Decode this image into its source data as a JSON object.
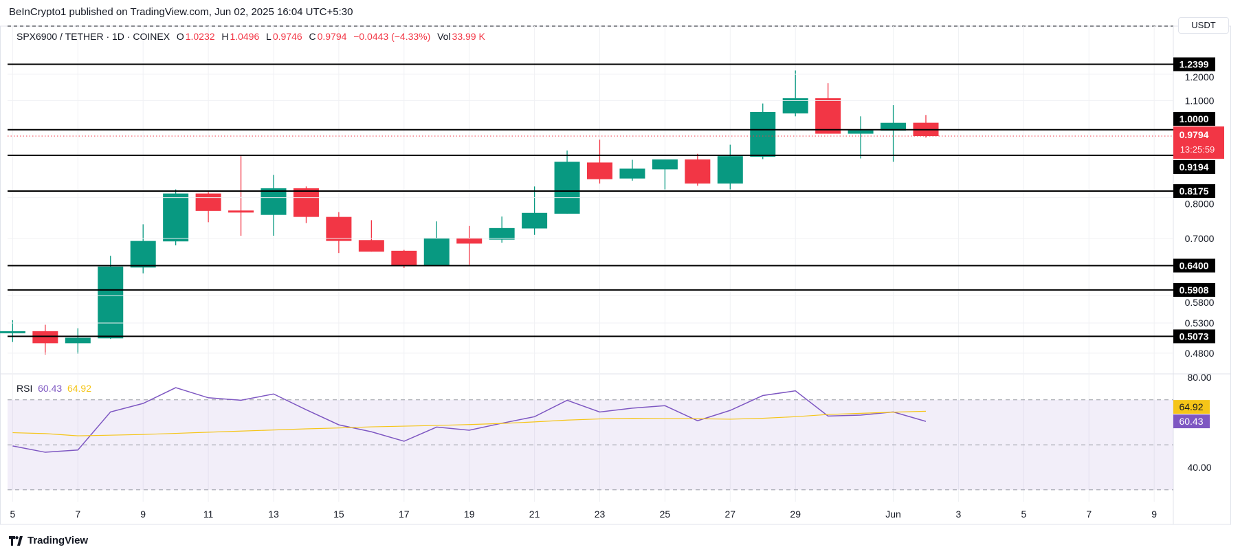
{
  "header": {
    "published": "BeInCrypto1 published on TradingView.com, Jun 02, 2025 16:04 UTC+5:30"
  },
  "legend": {
    "symbol": "SPX6900 / TETHER · 1D · COINEX",
    "o_label": "O",
    "o": "1.0232",
    "h_label": "H",
    "h": "1.0496",
    "l_label": "L",
    "l": "0.9746",
    "c_label": "C",
    "c": "0.9794",
    "change": "−0.0443 (−4.33%)",
    "vol_label": "Vol",
    "vol": "33.99 K"
  },
  "currency_button": "USDT",
  "footer": {
    "brand": "TradingView"
  },
  "colors": {
    "up": "#089981",
    "down": "#f23645",
    "rsi": "#7e57c2",
    "rsi_ma": "#f5c518",
    "level": "#000000"
  },
  "chart_data": [
    {
      "type": "candlestick",
      "scale": "log",
      "grid": true,
      "x_tick_labels": [
        "5",
        "7",
        "9",
        "11",
        "13",
        "15",
        "17",
        "19",
        "21",
        "23",
        "25",
        "27",
        "29",
        "Jun",
        "3",
        "5",
        "7",
        "9"
      ],
      "x_tick_dates": [
        "2025-05-05",
        "2025-05-07",
        "2025-05-09",
        "2025-05-11",
        "2025-05-13",
        "2025-05-15",
        "2025-05-17",
        "2025-05-19",
        "2025-05-21",
        "2025-05-23",
        "2025-05-25",
        "2025-05-27",
        "2025-05-29",
        "2025-06-01",
        "2025-06-03",
        "2025-06-05",
        "2025-06-07",
        "2025-06-09"
      ],
      "y_tick_labels": [
        "1.2000",
        "1.1000",
        "0.8000",
        "0.7000",
        "0.5800",
        "0.5300",
        "0.4800"
      ],
      "ylim": [
        0.46,
        1.27
      ],
      "candles": [
        {
          "date": "2025-05-05",
          "o": 0.515,
          "h": 0.535,
          "l": 0.498,
          "c": 0.516
        },
        {
          "date": "2025-05-06",
          "o": 0.516,
          "h": 0.527,
          "l": 0.478,
          "c": 0.496
        },
        {
          "date": "2025-05-07",
          "o": 0.496,
          "h": 0.521,
          "l": 0.479,
          "c": 0.505
        },
        {
          "date": "2025-05-08",
          "o": 0.504,
          "h": 0.661,
          "l": 0.503,
          "c": 0.638
        },
        {
          "date": "2025-05-09",
          "o": 0.636,
          "h": 0.733,
          "l": 0.624,
          "c": 0.694
        },
        {
          "date": "2025-05-10",
          "o": 0.693,
          "h": 0.822,
          "l": 0.684,
          "c": 0.811
        },
        {
          "date": "2025-05-11",
          "o": 0.811,
          "h": 0.815,
          "l": 0.738,
          "c": 0.766
        },
        {
          "date": "2025-05-12",
          "o": 0.767,
          "h": 0.918,
          "l": 0.706,
          "c": 0.764
        },
        {
          "date": "2025-05-13",
          "o": 0.756,
          "h": 0.862,
          "l": 0.706,
          "c": 0.825
        },
        {
          "date": "2025-05-14",
          "o": 0.825,
          "h": 0.83,
          "l": 0.736,
          "c": 0.751
        },
        {
          "date": "2025-05-15",
          "o": 0.751,
          "h": 0.763,
          "l": 0.667,
          "c": 0.694
        },
        {
          "date": "2025-05-16",
          "o": 0.696,
          "h": 0.743,
          "l": 0.67,
          "c": 0.67
        },
        {
          "date": "2025-05-17",
          "o": 0.672,
          "h": 0.674,
          "l": 0.635,
          "c": 0.64
        },
        {
          "date": "2025-05-18",
          "o": 0.64,
          "h": 0.74,
          "l": 0.64,
          "c": 0.701
        },
        {
          "date": "2025-05-19",
          "o": 0.701,
          "h": 0.729,
          "l": 0.642,
          "c": 0.688
        },
        {
          "date": "2025-05-20",
          "o": 0.697,
          "h": 0.752,
          "l": 0.69,
          "c": 0.724
        },
        {
          "date": "2025-05-21",
          "o": 0.723,
          "h": 0.83,
          "l": 0.708,
          "c": 0.761
        },
        {
          "date": "2025-05-22",
          "o": 0.759,
          "h": 0.934,
          "l": 0.759,
          "c": 0.9
        },
        {
          "date": "2025-05-23",
          "o": 0.898,
          "h": 0.968,
          "l": 0.838,
          "c": 0.85
        },
        {
          "date": "2025-05-24",
          "o": 0.852,
          "h": 0.906,
          "l": 0.846,
          "c": 0.88
        },
        {
          "date": "2025-05-25",
          "o": 0.878,
          "h": 0.907,
          "l": 0.822,
          "c": 0.907
        },
        {
          "date": "2025-05-26",
          "o": 0.907,
          "h": 0.924,
          "l": 0.832,
          "c": 0.838
        },
        {
          "date": "2025-05-27",
          "o": 0.838,
          "h": 0.952,
          "l": 0.822,
          "c": 0.917
        },
        {
          "date": "2025-05-28",
          "o": 0.915,
          "h": 1.09,
          "l": 0.908,
          "c": 1.06
        },
        {
          "date": "2025-05-29",
          "o": 1.055,
          "h": 1.215,
          "l": 1.045,
          "c": 1.109
        },
        {
          "date": "2025-05-30",
          "o": 1.109,
          "h": 1.165,
          "l": 0.987,
          "c": 0.987
        },
        {
          "date": "2025-05-31",
          "o": 0.987,
          "h": 1.045,
          "l": 0.91,
          "c": 0.998
        },
        {
          "date": "2025-06-01",
          "o": 0.997,
          "h": 1.084,
          "l": 0.9,
          "c": 1.023
        },
        {
          "date": "2025-06-02",
          "o": 1.0232,
          "h": 1.0496,
          "l": 0.9746,
          "c": 0.9794
        }
      ],
      "levels": [
        "1.2399",
        "1.0000",
        "0.9194",
        "0.8175",
        "0.6400",
        "0.5908",
        "0.5073"
      ],
      "last_price": {
        "value": "0.9794",
        "countdown": "13:25:59"
      }
    },
    {
      "type": "line",
      "title": "RSI",
      "rsi_value": "60.43",
      "ma_value": "64.92",
      "y_tick_labels": [
        "80.00",
        "40.00"
      ],
      "ylim": [
        25,
        84
      ],
      "bands": [
        70,
        50,
        30
      ],
      "series": [
        {
          "name": "RSI",
          "values": [
            49.5,
            46.7,
            47.7,
            64.6,
            68.4,
            75.4,
            70.9,
            69.8,
            72.6,
            65.6,
            58.9,
            55.8,
            51.6,
            57.9,
            56.5,
            59.6,
            62.5,
            69.8,
            64.6,
            66.3,
            67.4,
            60.7,
            65.3,
            71.9,
            74.0,
            62.8,
            63.2,
            64.6,
            60.43
          ]
        },
        {
          "name": "RSI-based MA",
          "values": [
            55.4,
            55.0,
            54.0,
            54.3,
            54.6,
            55.1,
            55.6,
            56.1,
            56.6,
            57.1,
            57.5,
            58.0,
            58.3,
            58.6,
            59.0,
            59.5,
            60.2,
            61.0,
            61.5,
            61.8,
            61.7,
            61.6,
            61.4,
            61.8,
            62.5,
            63.5,
            64.0,
            64.5,
            64.92
          ]
        }
      ]
    }
  ]
}
